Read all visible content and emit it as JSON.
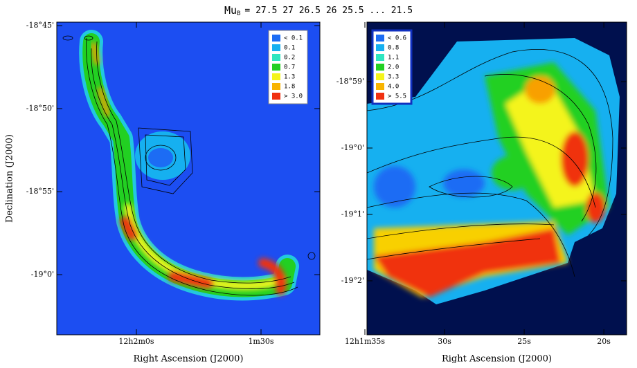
{
  "chart_data": [
    {
      "type": "image",
      "title": {
        "symbol": "Mu",
        "subscript": "B",
        "rest": "= 27.5 27 26.5 26 25.5 ... 21.5"
      },
      "x_label": "Right Ascension (J2000)",
      "y_label": "Declination (J2000)",
      "xlim": [
        43339.17,
        43275.83
      ],
      "xticks": [
        {
          "value": 43320,
          "label": "12h2m0s"
        },
        {
          "value": 43290,
          "label": "1m30s"
        }
      ],
      "ylim": [
        -19.0604,
        -18.7465
      ],
      "yticks": [
        {
          "value": -18.75,
          "label": "-18°45'"
        },
        {
          "value": -18.8333,
          "label": "-18°50'"
        },
        {
          "value": -18.9167,
          "label": "-18°55'"
        },
        {
          "value": -19.0,
          "label": "-19°0'"
        }
      ],
      "legend": [
        {
          "name": "< 0.1",
          "color": "#1c6cf4"
        },
        {
          "name": "0.1",
          "color": "#16b0f0"
        },
        {
          "name": "0.2",
          "color": "#2ee6c0"
        },
        {
          "name": "0.7",
          "color": "#22d022"
        },
        {
          "name": "1.3",
          "color": "#f4f41c"
        },
        {
          "name": "1.8",
          "color": "#f8b400"
        },
        {
          "name": "> 3.0",
          "color": "#f03010"
        }
      ]
    },
    {
      "type": "image",
      "x_label": "Right Ascension (J2000)",
      "xlim": [
        43294.87,
        43278.57
      ],
      "xticks": [
        {
          "value": 43295,
          "label": "12h1m35s"
        },
        {
          "value": 43290,
          "label": "30s"
        },
        {
          "value": 43285,
          "label": "25s"
        },
        {
          "value": 43280,
          "label": "20s"
        }
      ],
      "ylim": [
        -19.04688,
        -18.9684
      ],
      "yticks": [
        {
          "value": -18.98333,
          "label": "-18°59'"
        },
        {
          "value": -19.0,
          "label": "-19°0'"
        },
        {
          "value": -19.01667,
          "label": "-19°1'"
        },
        {
          "value": -19.03333,
          "label": "-19°2'"
        }
      ],
      "legend": [
        {
          "name": "< 0.6",
          "color": "#1c6cf4"
        },
        {
          "name": "0.8",
          "color": "#16b0f0"
        },
        {
          "name": "1.1",
          "color": "#2ee6c0"
        },
        {
          "name": "2.0",
          "color": "#22d022"
        },
        {
          "name": "3.3",
          "color": "#f4f41c"
        },
        {
          "name": "4.0",
          "color": "#f8b400"
        },
        {
          "name": "> 5.5",
          "color": "#f03010"
        }
      ]
    }
  ]
}
